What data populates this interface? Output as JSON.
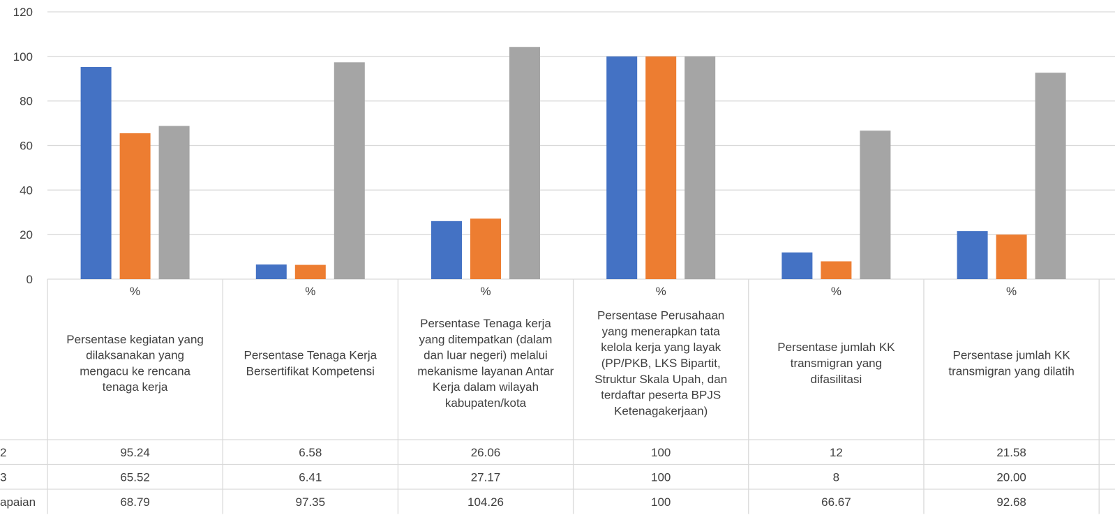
{
  "chart_data": {
    "type": "bar",
    "ylim": [
      0,
      120
    ],
    "yticks": [
      0,
      20,
      40,
      60,
      80,
      100,
      120
    ],
    "grid": true,
    "unit_row": [
      "%",
      "%",
      "%",
      "%",
      "%",
      "%"
    ],
    "categories": [
      "Persentase kegiatan yang dilaksanakan yang mengacu ke rencana tenaga kerja",
      "Persentase Tenaga Kerja Bersertifikat Kompetensi",
      "Persentase Tenaga kerja yang ditempatkan (dalam dan luar negeri) melalui mekanisme layanan Antar Kerja dalam wilayah kabupaten/kota",
      "Persentase Perusahaan yang menerapkan tata kelola kerja yang layak (PP/PKB, LKS Bipartit, Struktur Skala Upah, dan terdaftar peserta BPJS Ketenagakerjaan)",
      "Persentase jumlah KK transmigran yang difasilitasi",
      "Persentase jumlah KK transmigran yang dilatih"
    ],
    "category_lines": [
      [
        "Persentase kegiatan yang",
        "dilaksanakan yang",
        "mengacu ke rencana",
        "tenaga kerja"
      ],
      [
        "Persentase Tenaga Kerja",
        "Bersertifikat Kompetensi"
      ],
      [
        "Persentase Tenaga kerja",
        "yang ditempatkan (dalam",
        "dan luar negeri) melalui",
        "mekanisme layanan Antar",
        "Kerja dalam wilayah",
        "kabupaten/kota"
      ],
      [
        "Persentase Perusahaan",
        "yang menerapkan tata",
        "kelola kerja yang layak",
        "(PP/PKB, LKS Bipartit,",
        "Struktur Skala Upah, dan",
        "terdaftar peserta BPJS",
        "Ketenagakerjaan)"
      ],
      [
        "Persentase jumlah KK",
        "transmigran yang",
        "difasilitasi"
      ],
      [
        "Persentase jumlah KK",
        "transmigran yang dilatih"
      ]
    ],
    "series": [
      {
        "name": "2",
        "color": "#4472C4",
        "values": [
          95.24,
          6.58,
          26.06,
          100,
          12,
          21.58
        ],
        "labels": [
          "95.24",
          "6.58",
          "26.06",
          "100",
          "12",
          "21.58"
        ]
      },
      {
        "name": "3",
        "color": "#ED7D31",
        "values": [
          65.52,
          6.41,
          27.17,
          100,
          8,
          20.0
        ],
        "labels": [
          "65.52",
          "6.41",
          "27.17",
          "100",
          "8",
          "20.00"
        ]
      },
      {
        "name": "apaian",
        "color": "#A5A5A5",
        "values": [
          68.79,
          97.35,
          104.26,
          100,
          66.67,
          92.68
        ],
        "labels": [
          "68.79",
          "97.35",
          "104.26",
          "100",
          "66.67",
          "92.68"
        ]
      }
    ]
  }
}
